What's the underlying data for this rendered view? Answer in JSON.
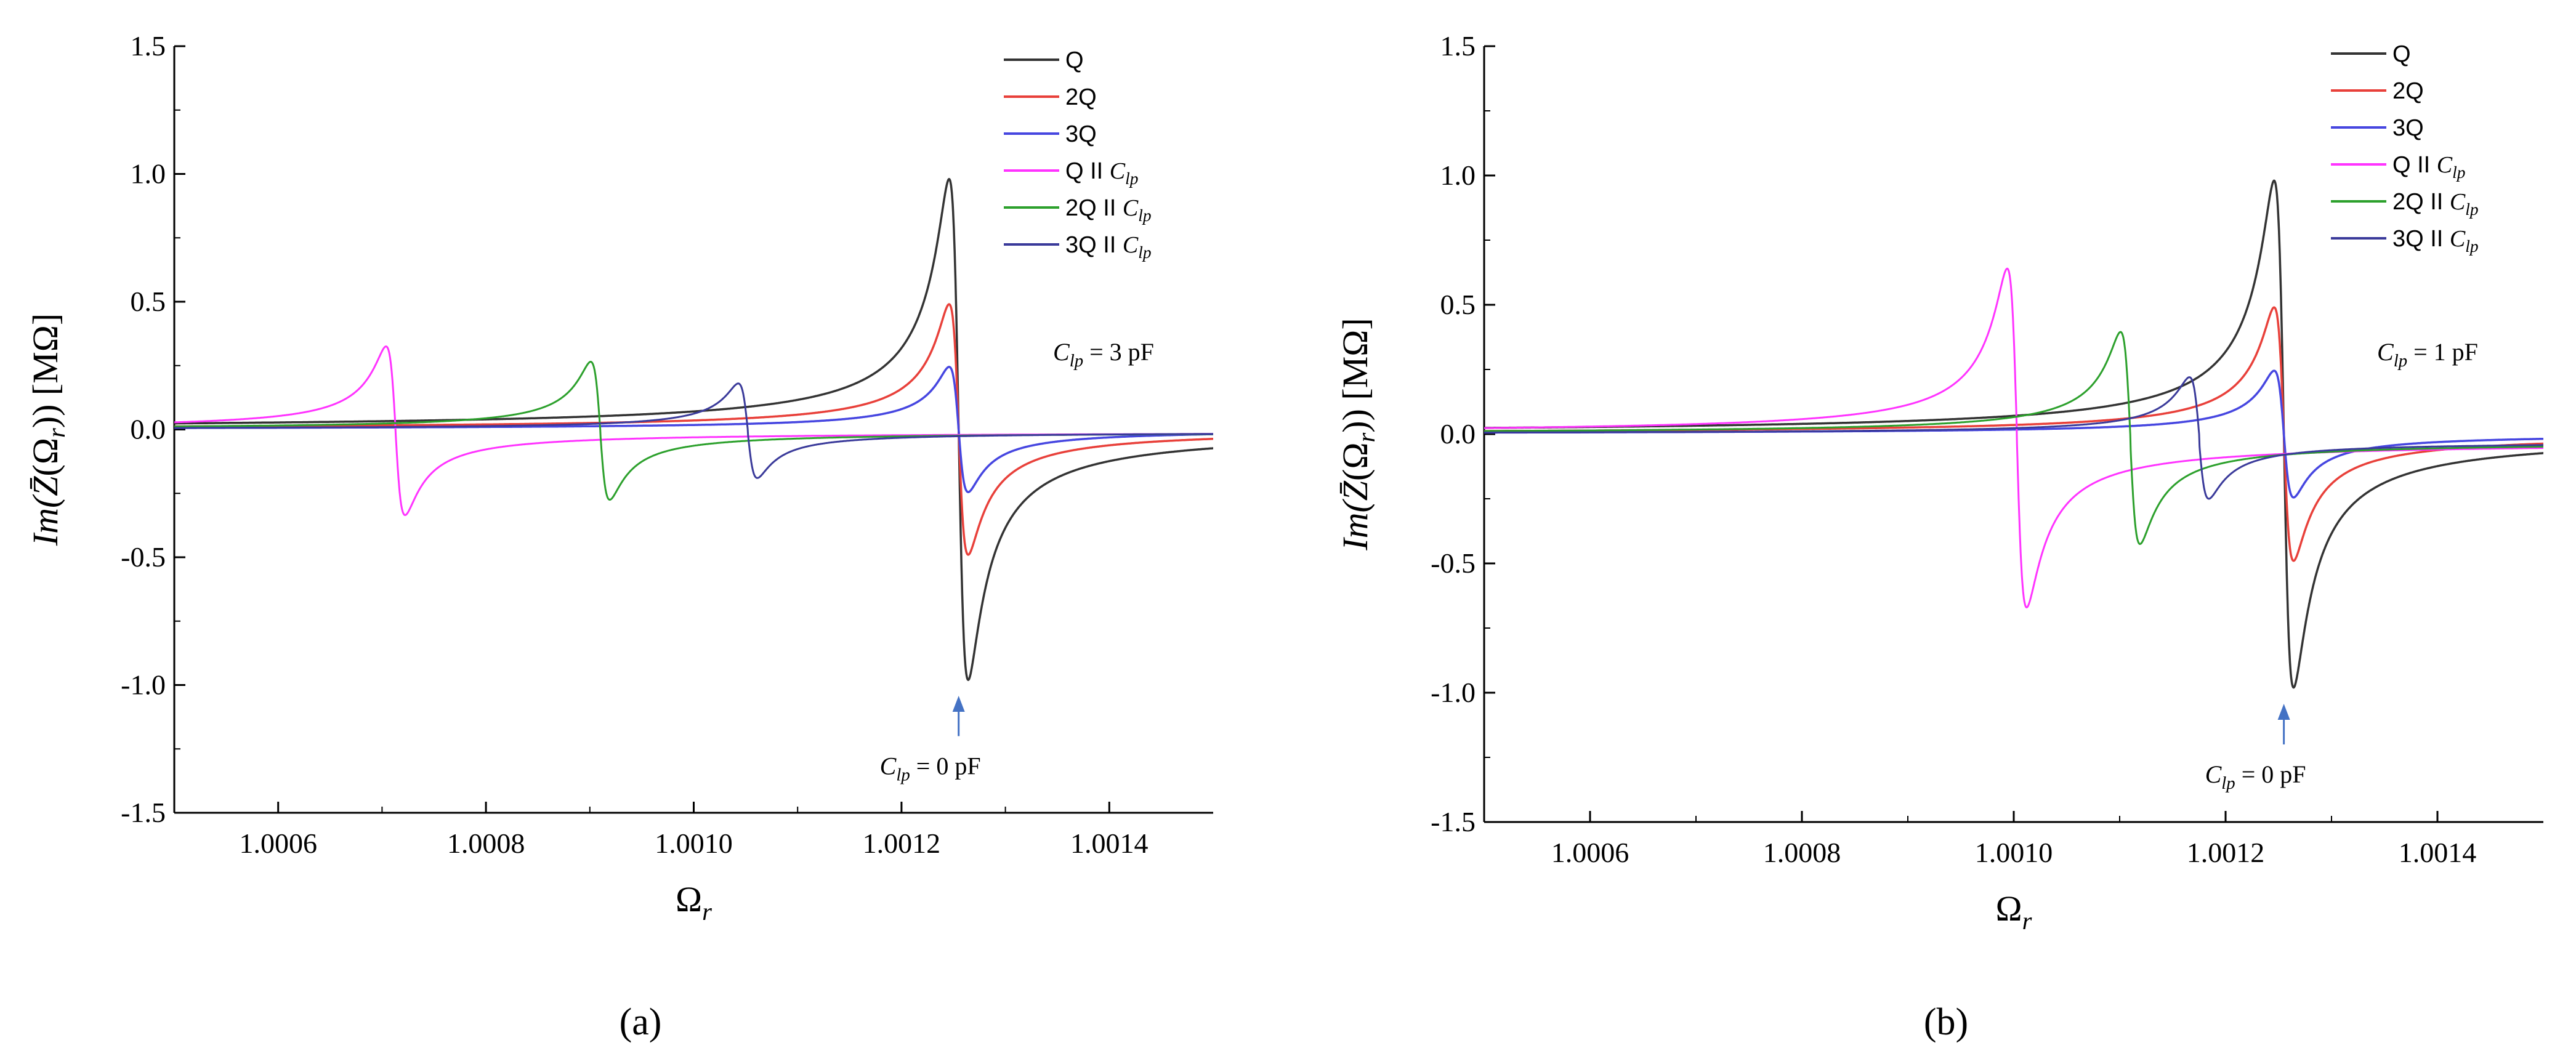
{
  "chart_data": [
    {
      "type": "line",
      "panel_label": "(a)",
      "xlabel": "Ω_r",
      "ylabel": "Im(Z̄(Ω_r)) [MΩ]",
      "xlim": [
        1.0005,
        1.0015
      ],
      "ylim": [
        -1.5,
        1.5
      ],
      "xticks": [
        1.0006,
        1.0008,
        1.001,
        1.0012,
        1.0014
      ],
      "xtick_labels": [
        "1.0006",
        "1.0008",
        "1.0010",
        "1.0012",
        "1.0014"
      ],
      "yticks": [
        -1.5,
        -1.0,
        -0.5,
        0.0,
        0.5,
        1.0,
        1.5
      ],
      "ytick_labels": [
        "-1.5",
        "-1.0",
        "-0.5",
        "0.0",
        "0.5",
        "1.0",
        "1.5"
      ],
      "legend_position": "top-right",
      "annotation_cap": "C_lp = 3 pF",
      "arrow": {
        "x": 1.001255,
        "label": "C_lp = 0 pF"
      },
      "series": [
        {
          "name": "Q",
          "label_main": "Q",
          "label_cap": "",
          "color": "#333333",
          "f0": 1.001255,
          "amp": 0.98,
          "df": 9.2e-06,
          "offset": 0
        },
        {
          "name": "2Q",
          "label_main": "2Q",
          "label_cap": "",
          "color": "#e8403a",
          "f0": 1.001255,
          "amp": 0.49,
          "df": 9.2e-06,
          "offset": 0
        },
        {
          "name": "3Q",
          "label_main": "3Q",
          "label_cap": "",
          "color": "#4646e0",
          "f0": 1.001255,
          "amp": 0.245,
          "df": 9.2e-06,
          "offset": 0
        },
        {
          "name": "Q || C_lp",
          "label_main": "Q  II ",
          "label_cap": "C_lp",
          "color": "#ff33ff",
          "f0": 1.000713,
          "amp": 0.325,
          "df": 9.2e-06,
          "offset": -0.01
        },
        {
          "name": "2Q || C_lp",
          "label_main": "2Q II ",
          "label_cap": "C_lp",
          "color": "#2ca02c",
          "f0": 1.00091,
          "amp": 0.265,
          "df": 9.2e-06,
          "offset": -0.01
        },
        {
          "name": "3Q || C_lp",
          "label_main": "3Q II ",
          "label_cap": "C_lp",
          "color": "#3a3a9a",
          "f0": 1.001052,
          "amp": 0.18,
          "df": 9.2e-06,
          "offset": -0.01
        }
      ]
    },
    {
      "type": "line",
      "panel_label": "(b)",
      "xlabel": "Ω_r",
      "ylabel": "Im(Z̄(Ω_r)) [MΩ]",
      "xlim": [
        1.0005,
        1.0015
      ],
      "ylim": [
        -1.5,
        1.5
      ],
      "xticks": [
        1.0006,
        1.0008,
        1.001,
        1.0012,
        1.0014
      ],
      "xtick_labels": [
        "1.0006",
        "1.0008",
        "1.0010",
        "1.0012",
        "1.0014"
      ],
      "yticks": [
        -1.5,
        -1.0,
        -0.5,
        0.0,
        0.5,
        1.0,
        1.5
      ],
      "ytick_labels": [
        "-1.5",
        "-1.0",
        "-0.5",
        "0.0",
        "0.5",
        "1.0",
        "1.5"
      ],
      "legend_position": "top-right",
      "annotation_cap": "C_lp = 1 pF",
      "arrow": {
        "x": 1.001255,
        "label": "C_lp = 0 pF"
      },
      "series": [
        {
          "name": "Q",
          "label_main": "Q",
          "label_cap": "",
          "color": "#333333",
          "f0": 1.001255,
          "amp": 0.98,
          "df": 9.2e-06,
          "offset": 0
        },
        {
          "name": "2Q",
          "label_main": "2Q",
          "label_cap": "",
          "color": "#e8403a",
          "f0": 1.001255,
          "amp": 0.49,
          "df": 9.2e-06,
          "offset": 0
        },
        {
          "name": "3Q",
          "label_main": "3Q",
          "label_cap": "",
          "color": "#4646e0",
          "f0": 1.001255,
          "amp": 0.245,
          "df": 9.2e-06,
          "offset": 0
        },
        {
          "name": "Q || C_lp",
          "label_main": "Q  II ",
          "label_cap": "C_lp",
          "color": "#ff33ff",
          "f0": 1.001003,
          "amp": 0.64,
          "df": 9.2e-06,
          "offset": -0.03
        },
        {
          "name": "2Q || C_lp",
          "label_main": "2Q II ",
          "label_cap": "C_lp",
          "color": "#2ca02c",
          "f0": 1.00111,
          "amp": 0.395,
          "df": 9.2e-06,
          "offset": -0.03
        },
        {
          "name": "3Q || C_lp",
          "label_main": "3Q II ",
          "label_cap": "C_lp",
          "color": "#3a3a9a",
          "f0": 1.001175,
          "amp": 0.22,
          "df": 9.2e-06,
          "offset": -0.03
        }
      ]
    }
  ]
}
